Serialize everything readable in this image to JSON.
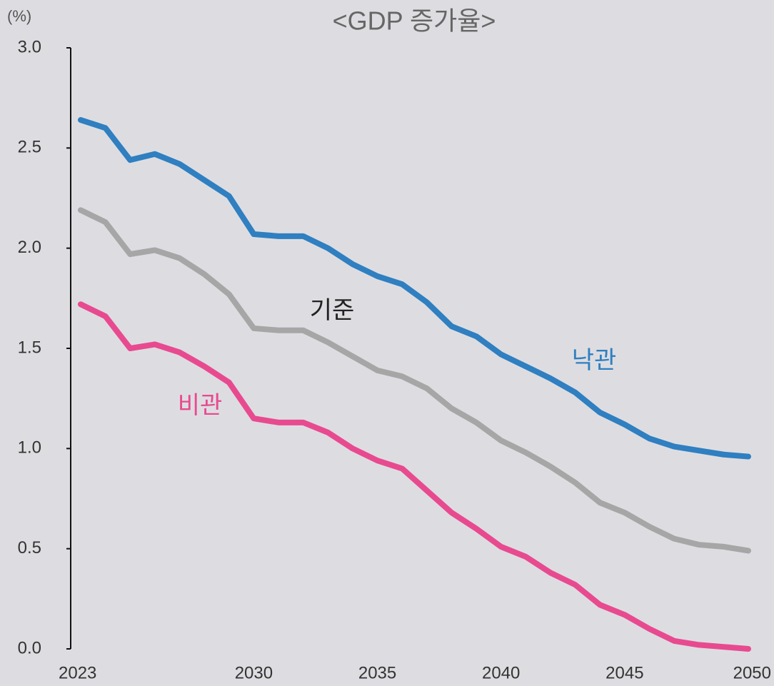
{
  "chart_data": {
    "type": "line",
    "title": "<GDP 증가율>",
    "y_label": "(%)",
    "x": [
      2023,
      2024,
      2025,
      2026,
      2027,
      2028,
      2029,
      2030,
      2031,
      2032,
      2033,
      2034,
      2035,
      2036,
      2037,
      2038,
      2039,
      2040,
      2041,
      2042,
      2043,
      2044,
      2045,
      2046,
      2047,
      2048,
      2049,
      2050
    ],
    "xlim": [
      2023,
      2050
    ],
    "xticks": [
      2023,
      2030,
      2035,
      2040,
      2045,
      2050
    ],
    "ylim": [
      0,
      3
    ],
    "yticks": [
      {
        "value": 0,
        "label": "0.0"
      },
      {
        "value": 0.5,
        "label": "0.5"
      },
      {
        "value": 1,
        "label": "1.0"
      },
      {
        "value": 1.5,
        "label": "1.5"
      },
      {
        "value": 2,
        "label": "2.0"
      },
      {
        "value": 2.5,
        "label": "2.5"
      },
      {
        "value": 3,
        "label": "3.0"
      }
    ],
    "grid": false,
    "series": [
      {
        "name": "낙관",
        "color": "#2f7fc1",
        "values": [
          2.64,
          2.6,
          2.44,
          2.47,
          2.42,
          2.34,
          2.26,
          2.07,
          2.06,
          2.06,
          2.0,
          1.92,
          1.86,
          1.82,
          1.73,
          1.61,
          1.56,
          1.47,
          1.41,
          1.35,
          1.28,
          1.18,
          1.12,
          1.05,
          1.01,
          0.99,
          0.97,
          0.96
        ]
      },
      {
        "name": "기준",
        "color": "#a6a6a6",
        "values": [
          2.19,
          2.13,
          1.97,
          1.99,
          1.95,
          1.87,
          1.77,
          1.6,
          1.59,
          1.59,
          1.53,
          1.46,
          1.39,
          1.36,
          1.3,
          1.2,
          1.13,
          1.04,
          0.98,
          0.91,
          0.83,
          0.73,
          0.68,
          0.61,
          0.55,
          0.52,
          0.51,
          0.49
        ]
      },
      {
        "name": "비관",
        "color": "#e84a90",
        "values": [
          1.72,
          1.66,
          1.5,
          1.52,
          1.48,
          1.41,
          1.33,
          1.15,
          1.13,
          1.13,
          1.08,
          1.0,
          0.94,
          0.9,
          0.79,
          0.68,
          0.6,
          0.51,
          0.46,
          0.38,
          0.32,
          0.22,
          0.17,
          0.1,
          0.04,
          0.02,
          0.01,
          0.0
        ]
      }
    ]
  }
}
